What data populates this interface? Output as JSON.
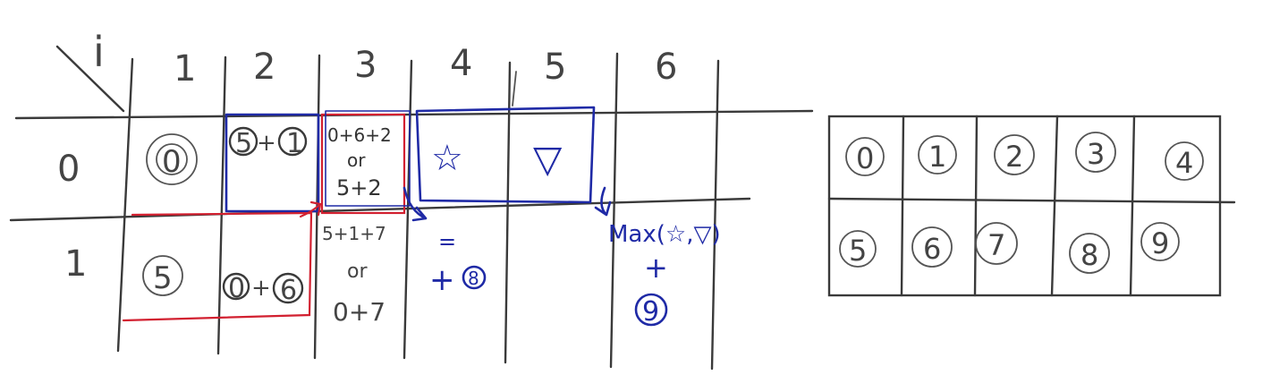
{
  "dp_table": {
    "corner_label": "i",
    "column_headers": [
      "1",
      "2",
      "3",
      "4",
      "5",
      "6"
    ],
    "row_headers": [
      "0",
      "1"
    ],
    "row0": {
      "c1": "0",
      "c2_a": "5",
      "c2_op": "+",
      "c2_b": "1",
      "c3_line1": "0+6+2",
      "c3_line2": "or",
      "c3_line3": "5+2",
      "c4_symbol": "☆",
      "c5_symbol": "▽"
    },
    "row1": {
      "c1": "5",
      "c2_a": "0",
      "c2_op": "+",
      "c2_b": "6",
      "c3_line1": "5+1+7",
      "c3_line2": "or",
      "c3_line3": "0+7",
      "c4_eq": "=",
      "c4_plus": "+",
      "c4_num": "8",
      "c6_line1": "Max(☆,▽)",
      "c6_plus": "+",
      "c6_num": "9"
    }
  },
  "index_grid": {
    "row1": [
      "0",
      "1",
      "2",
      "3",
      "4"
    ],
    "row2": [
      "5",
      "6",
      "7",
      "8",
      "9"
    ]
  },
  "colors": {
    "ink": "#3a3a3a",
    "blue_pen": "#1f2aa6",
    "red_pen": "#d22030"
  }
}
